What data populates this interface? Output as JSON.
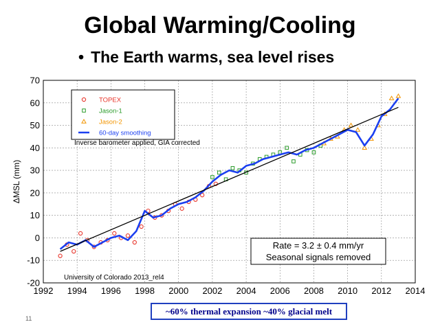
{
  "slide": {
    "title": "Global Warming/Cooling",
    "bullet": "The Earth warms, sea level rises",
    "caption": "~60% thermal expansion  ~40% glacial melt",
    "number": "11"
  },
  "chart_data": {
    "type": "scatter",
    "title": "",
    "xlabel": "",
    "ylabel": "ΔMSL (mm)",
    "xlim": [
      1992,
      2014
    ],
    "ylim": [
      -20,
      70
    ],
    "xticks": [
      1992,
      1994,
      1996,
      1998,
      2000,
      2002,
      2004,
      2006,
      2008,
      2010,
      2012,
      2014
    ],
    "yticks": [
      -20,
      -10,
      0,
      10,
      20,
      30,
      40,
      50,
      60,
      70
    ],
    "grid": true,
    "annotations": {
      "correction": "Inverse barometer applied, GIA corrected",
      "rate": "Rate = 3.2 ± 0.4 mm/yr",
      "seasonal": "Seasonal signals removed",
      "source": "University of Colorado 2013_rel4"
    },
    "legend_position": "top-left",
    "series": [
      {
        "name": "TOPEX",
        "color": "#e8352b",
        "marker": "circle",
        "x": [
          1993.0,
          1993.4,
          1993.8,
          1994.2,
          1994.6,
          1995.0,
          1995.4,
          1995.8,
          1996.2,
          1996.6,
          1997.0,
          1997.4,
          1997.8,
          1998.2,
          1998.6,
          1999.0,
          1999.4,
          1999.8,
          2000.2,
          2000.6,
          2001.0,
          2001.4,
          2001.8,
          2002.2
        ],
        "y": [
          -8,
          -3,
          -6,
          2,
          -1,
          -4,
          -2,
          -1,
          2,
          0,
          1,
          -2,
          5,
          12,
          9,
          10,
          12,
          15,
          13,
          16,
          17,
          19,
          23,
          24
        ]
      },
      {
        "name": "Jason-1",
        "color": "#2a9b2a",
        "marker": "square",
        "x": [
          2002.0,
          2002.4,
          2002.8,
          2003.2,
          2003.6,
          2004.0,
          2004.4,
          2004.8,
          2005.2,
          2005.6,
          2006.0,
          2006.4,
          2006.8,
          2007.2,
          2007.6,
          2008.0,
          2008.4
        ],
        "y": [
          27,
          29,
          26,
          31,
          30,
          29,
          33,
          35,
          36,
          37,
          38,
          40,
          34,
          37,
          39,
          38,
          41
        ]
      },
      {
        "name": "Jason-2",
        "color": "#f29500",
        "marker": "triangle",
        "x": [
          2008.6,
          2009.0,
          2009.4,
          2009.8,
          2010.2,
          2010.6,
          2011.0,
          2011.4,
          2011.8,
          2012.2,
          2012.6,
          2013.0
        ],
        "y": [
          42,
          44,
          45,
          48,
          50,
          48,
          40,
          44,
          50,
          55,
          62,
          63
        ]
      },
      {
        "name": "60-day smoothing",
        "color": "#1b3ff0",
        "marker": "line",
        "x": [
          1993.0,
          1993.5,
          1994.0,
          1994.5,
          1995.0,
          1995.5,
          1996.0,
          1996.5,
          1997.0,
          1997.5,
          1998.0,
          1998.5,
          1999.0,
          1999.5,
          2000.0,
          2000.5,
          2001.0,
          2001.5,
          2002.0,
          2002.5,
          2003.0,
          2003.5,
          2004.0,
          2004.5,
          2005.0,
          2005.5,
          2006.0,
          2006.5,
          2007.0,
          2007.5,
          2008.0,
          2008.5,
          2009.0,
          2009.5,
          2010.0,
          2010.5,
          2011.0,
          2011.5,
          2012.0,
          2012.5,
          2013.0
        ],
        "y": [
          -5,
          -2,
          -3,
          -1,
          -4,
          -2,
          0,
          1,
          -1,
          3,
          12,
          9,
          10,
          13,
          15,
          16,
          18,
          21,
          25,
          28,
          30,
          29,
          32,
          33,
          35,
          36,
          37,
          38,
          37,
          39,
          40,
          42,
          44,
          46,
          48,
          47,
          41,
          46,
          54,
          57,
          62
        ]
      }
    ],
    "trend": {
      "name": "linear trend",
      "color": "#000000",
      "x": [
        1993.0,
        2013.0
      ],
      "y": [
        -6,
        58
      ]
    }
  }
}
